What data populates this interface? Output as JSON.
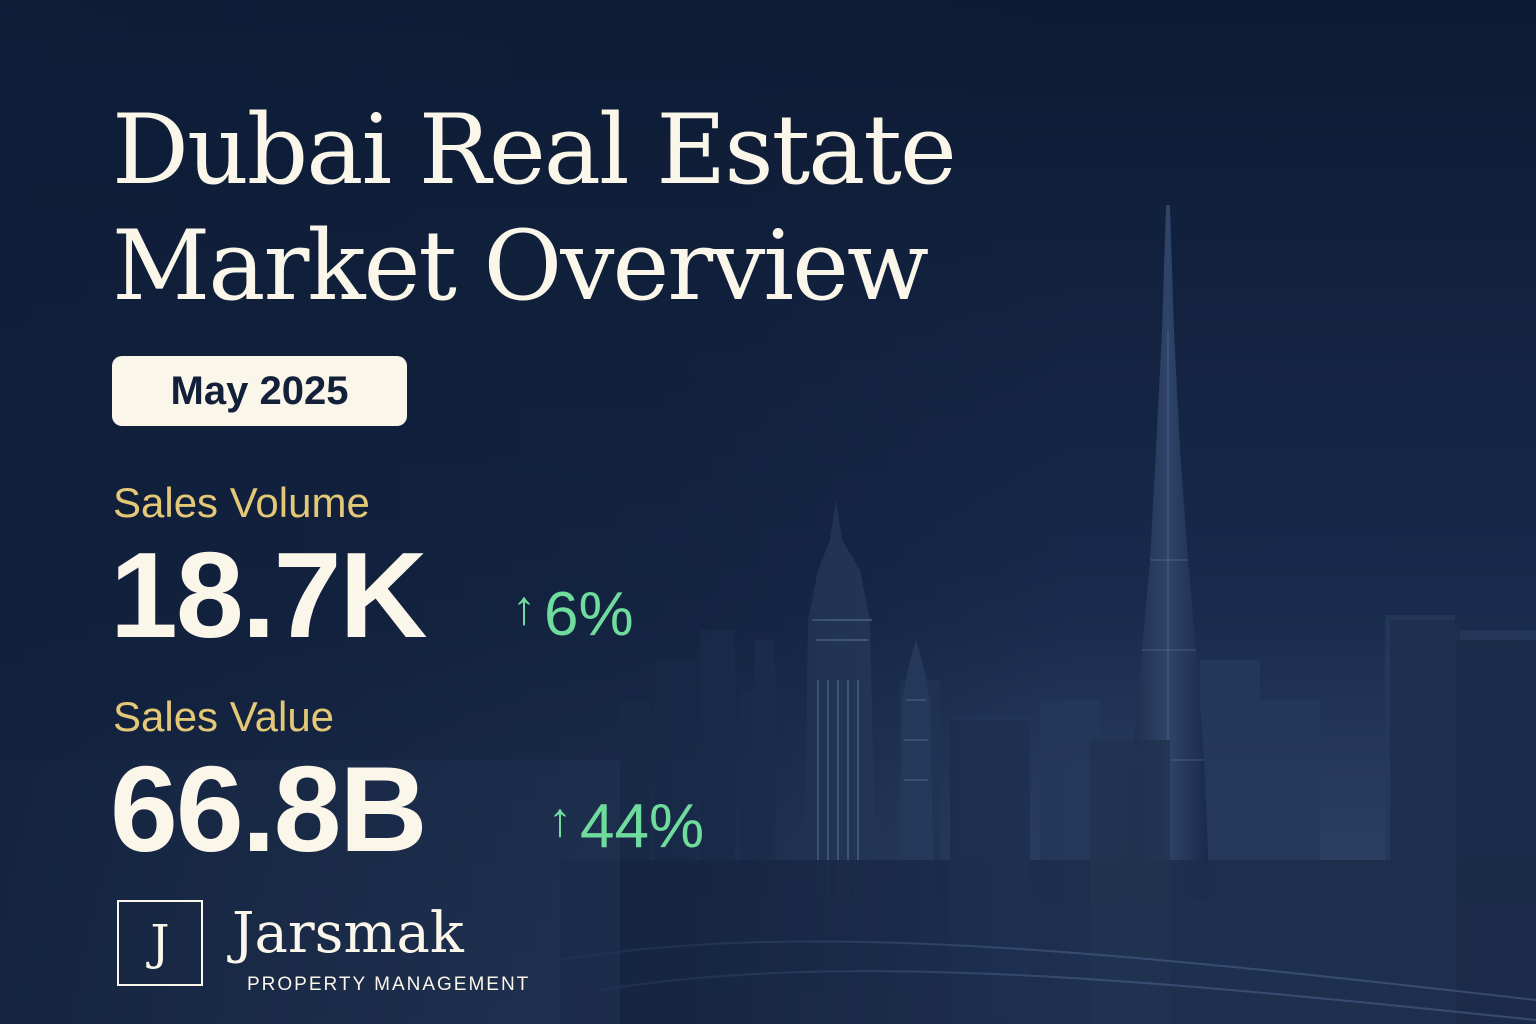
{
  "title": {
    "line1": "Dubai Real Estate",
    "line2": "Market Overview"
  },
  "date_badge": "May 2025",
  "metrics": {
    "sales_volume": {
      "label": "Sales Volume",
      "value": "18.7K",
      "change": "6%"
    },
    "sales_value": {
      "label": "Sales Value",
      "value": "66.8B",
      "change": "44%"
    }
  },
  "brand": {
    "monogram": "J",
    "name": "Jarsmak",
    "tagline": "PROPERTY MANAGEMENT"
  },
  "icons": {
    "trend": "arrow-up-icon",
    "background": "city-skyline-night"
  },
  "colors": {
    "background": "#0f1e38",
    "heading": "#fbf6ea",
    "label": "#e5c877",
    "positive_change": "#6fdc9e",
    "badge_text": "#12203a"
  }
}
